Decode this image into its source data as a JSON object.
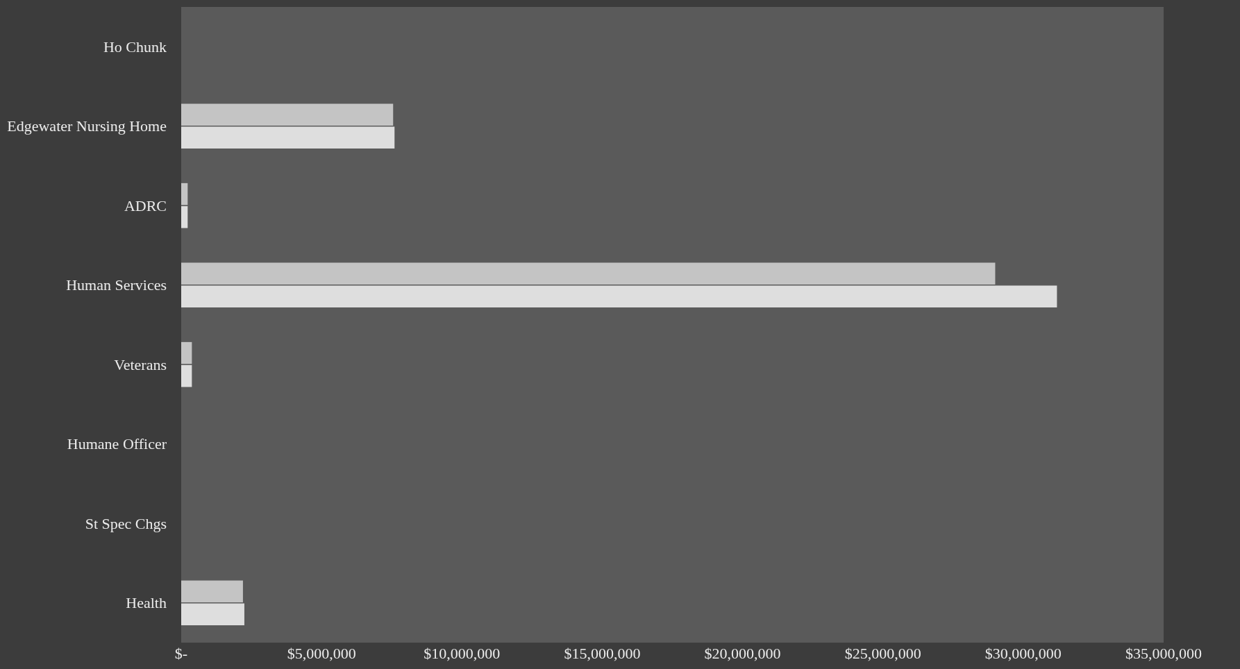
{
  "chart_data": {
    "type": "bar",
    "orientation": "horizontal",
    "categories": [
      "Ho Chunk",
      "Edgewater Nursing Home",
      "ADRC",
      "Human Services",
      "Veterans",
      "Humane Officer",
      "St Spec Chgs",
      "Health"
    ],
    "series": [
      {
        "color": "#c4c4c4",
        "values": [
          0,
          7550000,
          230000,
          29000000,
          380000,
          0,
          0,
          2200000
        ]
      },
      {
        "color": "#dedede",
        "values": [
          0,
          7600000,
          230000,
          31200000,
          380000,
          0,
          0,
          2250000
        ]
      }
    ],
    "xlim": [
      0,
      35000000
    ],
    "xticks": [
      {
        "value": 0,
        "label": "$-"
      },
      {
        "value": 5000000,
        "label": "$5,000,000"
      },
      {
        "value": 10000000,
        "label": "$10,000,000"
      },
      {
        "value": 15000000,
        "label": "$15,000,000"
      },
      {
        "value": 20000000,
        "label": "$20,000,000"
      },
      {
        "value": 25000000,
        "label": "$25,000,000"
      },
      {
        "value": 30000000,
        "label": "$30,000,000"
      },
      {
        "value": 35000000,
        "label": "$35,000,000"
      }
    ],
    "grid": false
  }
}
